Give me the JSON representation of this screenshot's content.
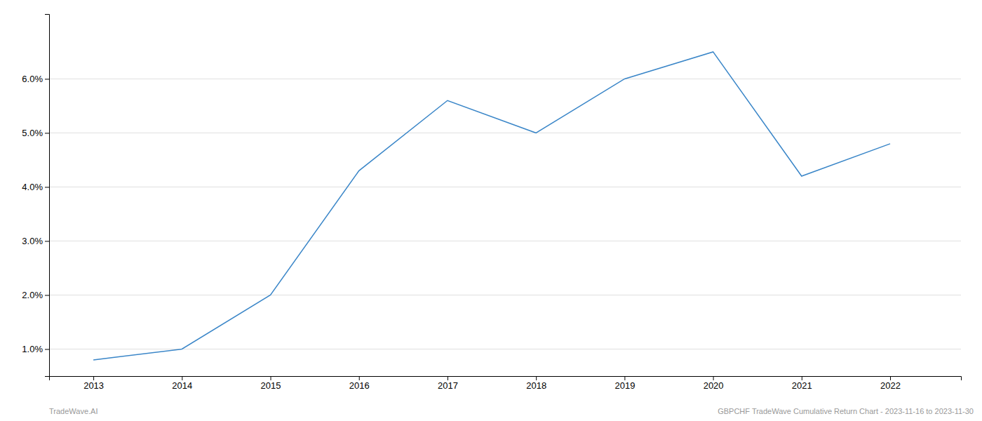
{
  "chart_data": {
    "type": "line",
    "x": [
      2013,
      2014,
      2015,
      2016,
      2017,
      2018,
      2019,
      2020,
      2021,
      2022
    ],
    "values": [
      0.008,
      0.01,
      0.02,
      0.043,
      0.056,
      0.05,
      0.06,
      0.065,
      0.042,
      0.048
    ],
    "color": "#3a86c8",
    "xlim": [
      2012.5,
      2022.8
    ],
    "ylim": [
      0.005,
      0.072
    ],
    "xticks": [
      2013,
      2014,
      2015,
      2016,
      2017,
      2018,
      2019,
      2020,
      2021,
      2022
    ],
    "yticks": [
      {
        "value": 0.01,
        "label": "1.0%"
      },
      {
        "value": 0.02,
        "label": "2.0%"
      },
      {
        "value": 0.03,
        "label": "3.0%"
      },
      {
        "value": 0.04,
        "label": "4.0%"
      },
      {
        "value": 0.05,
        "label": "5.0%"
      },
      {
        "value": 0.06,
        "label": "6.0%"
      }
    ],
    "grid": true,
    "annotations": [
      "TradeWave.AI",
      "GBPCHF TradeWave Cumulative Return Chart - 2023-11-16 to 2023-11-30"
    ]
  }
}
